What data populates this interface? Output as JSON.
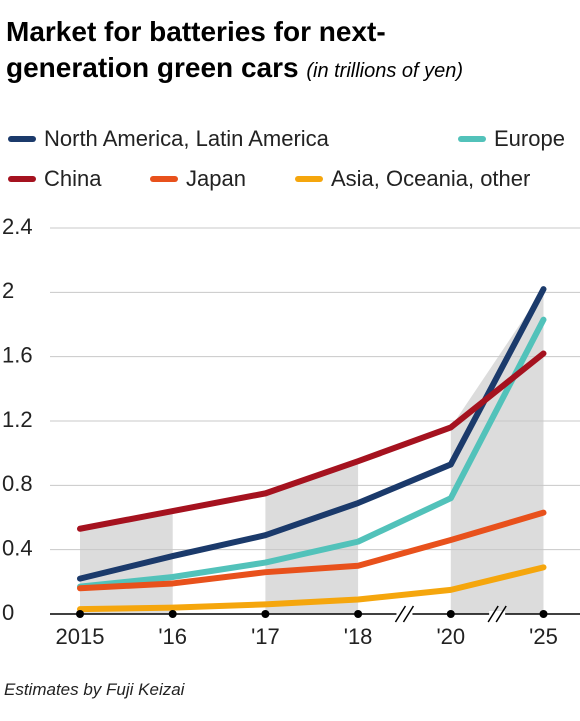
{
  "chart_data": {
    "type": "line",
    "title": "Market for batteries for next-generation green cars",
    "subtitle": "(in trillions of yen)",
    "note": "Estimates by Fuji Keizai",
    "categories": [
      "2015",
      "'16",
      "'17",
      "'18",
      "'20",
      "'25"
    ],
    "series": [
      {
        "name": "North America, Latin America",
        "color": "#1b3a6b",
        "values": [
          0.22,
          0.36,
          0.49,
          0.69,
          0.93,
          2.02
        ]
      },
      {
        "name": "Europe",
        "color": "#52c2ba",
        "values": [
          0.17,
          0.23,
          0.32,
          0.45,
          0.72,
          1.83
        ]
      },
      {
        "name": "China",
        "color": "#a5121f",
        "values": [
          0.53,
          0.64,
          0.75,
          0.95,
          1.16,
          1.62
        ]
      },
      {
        "name": "Japan",
        "color": "#e8511c",
        "values": [
          0.16,
          0.19,
          0.26,
          0.3,
          0.46,
          0.63
        ]
      },
      {
        "name": "Asia, Oceania, other",
        "color": "#f5a60d",
        "values": [
          0.03,
          0.04,
          0.06,
          0.09,
          0.15,
          0.29
        ]
      }
    ],
    "ylim": [
      0,
      2.4
    ],
    "yticks": [
      0,
      0.4,
      0.8,
      1.2,
      1.6,
      2.0,
      2.4
    ],
    "grid": true,
    "axis_breaks": [
      3,
      4
    ]
  }
}
